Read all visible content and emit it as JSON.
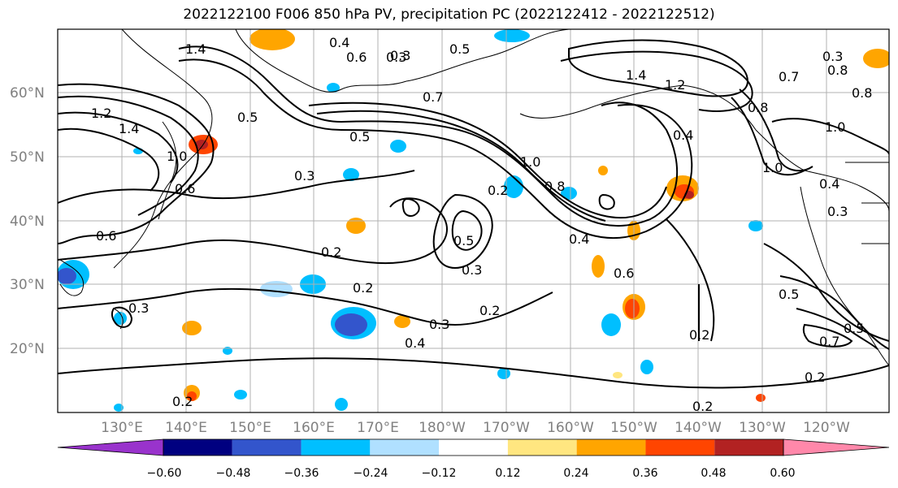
{
  "title": "2022122100 F006 850 hPa PV, precipitation PC (2022122412 - 2022122512)",
  "lat_labels": [
    "60°N",
    "50°N",
    "40°N",
    "30°N",
    "20°N"
  ],
  "lon_labels": [
    "130°E",
    "140°E",
    "150°E",
    "160°E",
    "170°E",
    "180°W",
    "170°W",
    "160°W",
    "150°W",
    "140°W",
    "130°W",
    "120°W"
  ],
  "colorbar": {
    "ticks": [
      "−0.60",
      "−0.48",
      "−0.36",
      "−0.24",
      "−0.12",
      "0.12",
      "0.24",
      "0.36",
      "0.48",
      "0.60"
    ],
    "colors": [
      "#9933cc",
      "#000080",
      "#3355cc",
      "#00bfff",
      "#b0e0ff",
      "#ffffff",
      "#ffe680",
      "#ffa500",
      "#ff4500",
      "#b22222",
      "#ff88aa"
    ]
  },
  "contour_labels": [
    "1.4",
    "1.2",
    "1.4",
    "1.0",
    "0.6",
    "0.5",
    "0.3",
    "0.2",
    "0.2",
    "0.3",
    "0.4",
    "0.5",
    "0.6",
    "0.7",
    "0.8",
    "1.0",
    "1.4",
    "1.2",
    "0.8",
    "0.4",
    "0.2",
    "0.2",
    "0.5",
    "0.3",
    "0.2",
    "0.4",
    "0.3",
    "1.0",
    "0.8",
    "0.4",
    "0.3",
    "0.7",
    "0.5",
    "0.2",
    "0.3",
    "0.6",
    "0.4",
    "0.8",
    "1.0",
    "0.6",
    "0.5",
    "0.3",
    "0.2",
    "0.2",
    "0.3",
    "0.7",
    "0.5"
  ]
}
